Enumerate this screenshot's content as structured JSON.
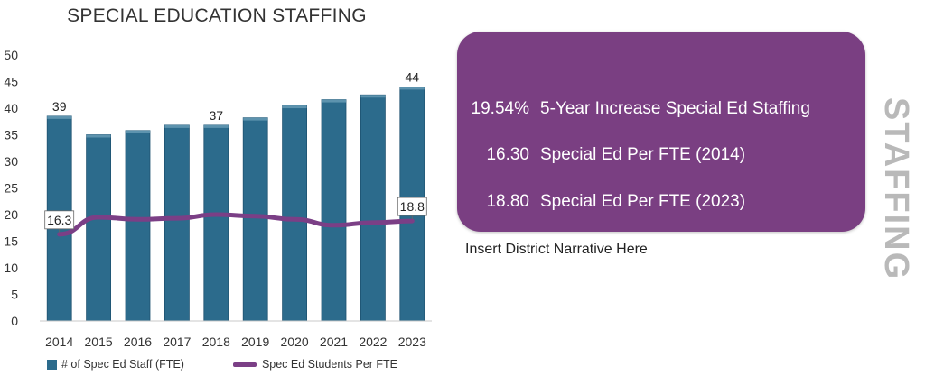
{
  "chart_data": {
    "type": "bar",
    "title": "SPECIAL EDUCATION STAFFING",
    "categories": [
      "2014",
      "2015",
      "2016",
      "2017",
      "2018",
      "2019",
      "2020",
      "2021",
      "2022",
      "2023"
    ],
    "series": [
      {
        "name": "# of Spec Ed Staff (FTE)",
        "type": "bar",
        "values": [
          38.5,
          35,
          35.8,
          36.8,
          36.8,
          38.2,
          40.5,
          41.6,
          42.5,
          44
        ],
        "data_labels": {
          "0": "39",
          "4": "37",
          "9": "44"
        }
      },
      {
        "name": "Spec Ed Students Per FTE",
        "type": "line",
        "values": [
          16.3,
          19.5,
          19.1,
          19.3,
          20.0,
          19.7,
          19.1,
          18.0,
          18.5,
          18.8
        ],
        "data_labels": {
          "0": "16.3",
          "9": "18.8"
        }
      }
    ],
    "ylim": [
      0,
      50
    ],
    "yticks": [
      0,
      5,
      10,
      15,
      20,
      25,
      30,
      35,
      40,
      45,
      50
    ],
    "grid": false,
    "legend_position": "bottom-left",
    "colors": {
      "bar": "#2c6b8c",
      "line": "#7b3f86"
    }
  },
  "stats": [
    {
      "value": "19.54%",
      "label": "5-Year Increase Special Ed Staffing"
    },
    {
      "value": "16.30",
      "label": "Special Ed Per FTE (2014)"
    },
    {
      "value": "18.80",
      "label": "Special Ed Per FTE (2023)"
    }
  ],
  "narrative": "Insert District Narrative Here",
  "side_label": "STAFFING",
  "colors": {
    "panel": "#7a3f82",
    "side_label": "#b9b9b9"
  }
}
